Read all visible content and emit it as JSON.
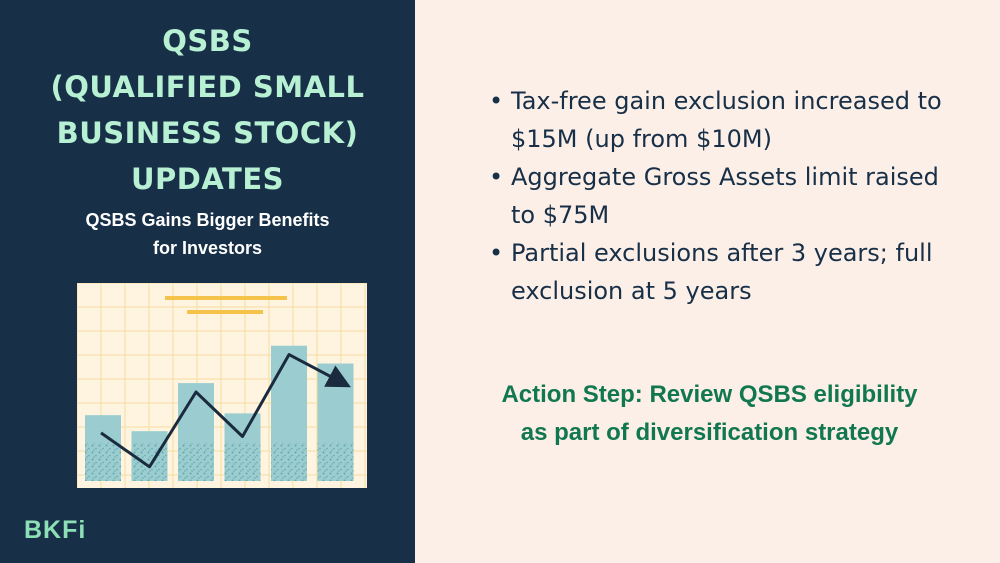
{
  "title_lines": [
    "QSBS",
    "(QUALIFIED SMALL",
    "BUSINESS STOCK)",
    "UPDATES"
  ],
  "subtitle_lines": [
    "QSBS Gains Bigger Benefits",
    "for Investors"
  ],
  "illustration": {
    "type": "bar",
    "bar_levels": [
      0.37,
      0.28,
      0.55,
      0.38,
      0.76,
      0.66
    ],
    "trend_levels": [
      0.27,
      0.08,
      0.5,
      0.25,
      0.71,
      0.55
    ],
    "colors": {
      "background": "#fff4e0",
      "grid": "#f6dca0",
      "bar": "#9bcdd0",
      "bar_speckle": "#5fa8ac",
      "trend": "#1b2b3f",
      "header_lines": "#f5c24a"
    }
  },
  "logo_text": "BKFi",
  "bullets": [
    {
      "lines": [
        "Tax-free gain exclusion increased to",
        "$15M (up from $10M)"
      ]
    },
    {
      "lines": [
        "Aggregate Gross Assets limit raised",
        "to $75M"
      ]
    },
    {
      "lines": [
        "Partial exclusions after 3 years; full",
        "exclusion at 5 years"
      ]
    }
  ],
  "bullet_glyph": "•",
  "action_step_lines": [
    "Action Step: Review QSBS eligibility",
    "as part of diversification strategy"
  ],
  "colors": {
    "left_bg": "#172f47",
    "right_bg": "#fcefe8",
    "title": "#b8f0d4",
    "action": "#11774f"
  }
}
